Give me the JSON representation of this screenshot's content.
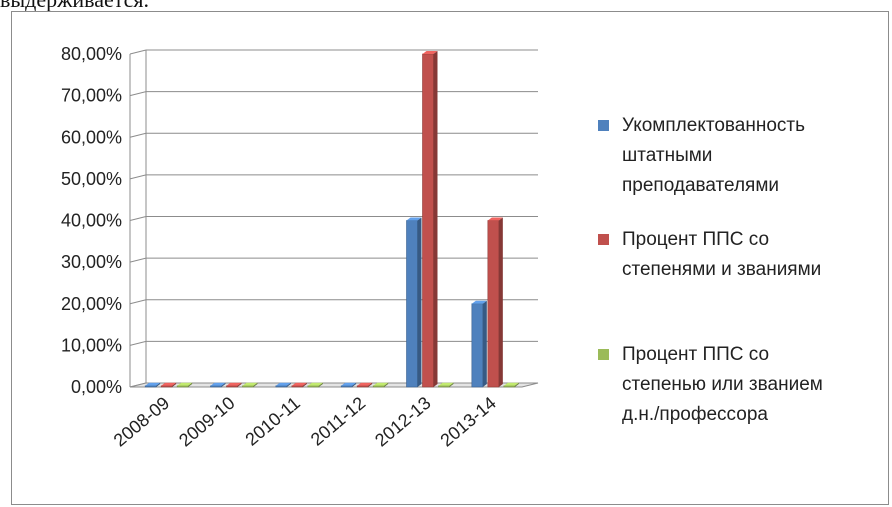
{
  "page": {
    "top_text": "выдерживается."
  },
  "chart_data": {
    "type": "bar",
    "title": "",
    "xlabel": "",
    "ylabel": "",
    "categories": [
      "2008-09",
      "2009-10",
      "2010-11",
      "2011-12",
      "2012-13",
      "2013-14"
    ],
    "ylim": [
      0,
      0.8
    ],
    "yticks": [
      "0,00%",
      "10,00%",
      "20,00%",
      "30,00%",
      "40,00%",
      "50,00%",
      "60,00%",
      "70,00%",
      "80,00%"
    ],
    "grid": true,
    "legend_position": "right",
    "series": [
      {
        "name": "Укомплектованность штатными преподавателями",
        "legend_lines": [
          "Укомплектованность",
          "штатными",
          "преподавателями"
        ],
        "color": "#4f81bd",
        "values": [
          0,
          0,
          0,
          0,
          0.4,
          0.2
        ]
      },
      {
        "name": "Процент ППС со степенями и званиями",
        "legend_lines": [
          "Процент ППС со",
          "степенями и званиями"
        ],
        "color": "#c0504d",
        "values": [
          0,
          0,
          0,
          0,
          0.8,
          0.4
        ]
      },
      {
        "name": "Процент ППС со степенью или званием д.н./профессора",
        "legend_lines": [
          "Процент ППС со",
          "степенью или званием",
          "д.н./профессора"
        ],
        "color": "#9bbb59",
        "values": [
          0,
          0,
          0,
          0,
          0,
          0
        ]
      }
    ]
  }
}
